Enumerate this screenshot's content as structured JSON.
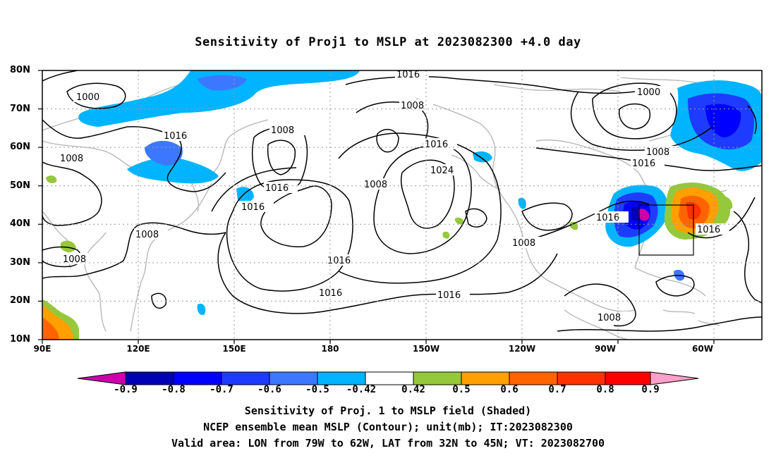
{
  "title": "Sensitivity of Proj1 to MSLP at 2023082300 +4.0 day",
  "lat_labels": [
    "80N",
    "70N",
    "60N",
    "50N",
    "40N",
    "30N",
    "20N",
    "10N"
  ],
  "lon_labels": [
    "90E",
    "120E",
    "150E",
    "180",
    "150W",
    "120W",
    "90W",
    "60W"
  ],
  "contour_labels": [
    "1000",
    "1016",
    "1008",
    "1016",
    "1008",
    "1008",
    "1016",
    "1008",
    "1008",
    "1016",
    "1024",
    "1008",
    "1016",
    "1000",
    "1008",
    "1016",
    "1016",
    "1008",
    "1016",
    "1016",
    "1016",
    "1016",
    "1008",
    "1016"
  ],
  "colorbar": {
    "labels": [
      "-0.9",
      "-0.8",
      "-0.7",
      "-0.6",
      "-0.5",
      "-0.42",
      "0.42",
      "0.5",
      "0.6",
      "0.7",
      "0.8",
      "0.9"
    ],
    "colors": [
      "#cc00aa",
      "#0000b4",
      "#0000ff",
      "#1e3cff",
      "#3c78ff",
      "#00b4ff",
      "#ffffff",
      "#96c83c",
      "#ffa000",
      "#ff6400",
      "#ff3200",
      "#ff0000",
      "#ffa0c8"
    ]
  },
  "footer": {
    "line1": "Sensitivity of Proj. 1 to MSLP field (Shaded)",
    "line2": "NCEP ensemble mean MSLP (Contour); unit(mb); IT:2023082300",
    "line3": "Valid area: LON from 79W to 62W, LAT from 32N to 45N; VT: 2023082700"
  },
  "valid_area": {
    "lon_from": "79W",
    "lon_to": "62W",
    "lat_from": "32N",
    "lat_to": "45N"
  }
}
